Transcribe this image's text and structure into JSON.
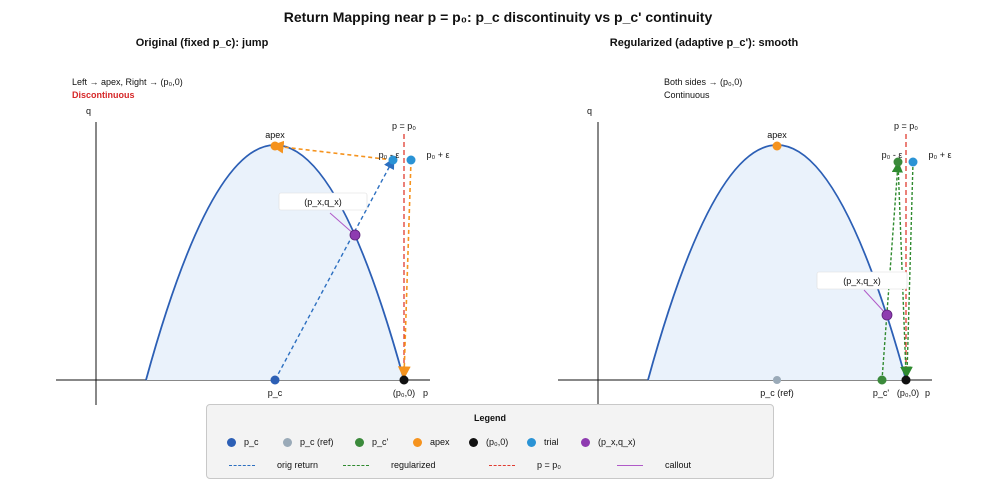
{
  "title": "Return Mapping near p = p₀: p_c discontinuity vs p_c' continuity",
  "left_panel": {
    "subtitle": "Original (fixed p_c): jump",
    "note1": "Left → apex, Right → (p₀,0)",
    "note2": "Discontinuous",
    "labels": {
      "q_axis": "q",
      "p_axis": "p",
      "apex": "apex",
      "p_eq": "p = p₀",
      "p_minus": "p₀ - ε",
      "p_plus": "p₀ + ε",
      "pxqx": "(p_x,q_x)",
      "pc": "p_c",
      "p0": "(p₀,0)"
    }
  },
  "right_panel": {
    "subtitle": "Regularized (adaptive p_c'): smooth",
    "note1": "Both sides → (p₀,0)",
    "note2": "Continuous",
    "labels": {
      "q_axis": "q",
      "p_axis": "p",
      "apex": "apex",
      "p_eq": "p = p₀",
      "p_minus": "p₀ - ε",
      "p_plus": "p₀ + ε",
      "pxqx": "(p_x,q_x)",
      "pc_ref": "p_c (ref)",
      "pc_prime": "p_c'",
      "p0": "(p₀,0)"
    }
  },
  "legend": {
    "title": "Legend",
    "items": [
      {
        "label": "p_c",
        "kind": "dot",
        "color": "#2c5fb5"
      },
      {
        "label": "p_c (ref)",
        "kind": "dot",
        "color": "#9aaab8"
      },
      {
        "label": "p_c'",
        "kind": "dot",
        "color": "#3b8a3b"
      },
      {
        "label": "apex",
        "kind": "dot",
        "color": "#f5931e"
      },
      {
        "label": "(p₀,0)",
        "kind": "dot",
        "color": "#111111"
      },
      {
        "label": "trial",
        "kind": "dot",
        "color": "#2a93d5"
      },
      {
        "label": "(p_x,q_x)",
        "kind": "dot",
        "color": "#8e3bb0"
      },
      {
        "label": "orig return",
        "kind": "dash",
        "color": "#2c6fc0"
      },
      {
        "label": "regularized",
        "kind": "dash",
        "color": "#2f8a2f"
      },
      {
        "label": "p = p₀",
        "kind": "dash",
        "color": "#e03c31"
      },
      {
        "label": "callout",
        "kind": "solid",
        "color": "#b05ac8"
      }
    ]
  },
  "colors": {
    "curve": "#2c5fb5",
    "fill": "#eaf2fb",
    "orig": "#2c6fc0",
    "orange": "#f5931e",
    "green": "#2f8a2f",
    "red": "#e03c31",
    "purple": "#8e3bb0",
    "trial": "#2a93d5"
  }
}
